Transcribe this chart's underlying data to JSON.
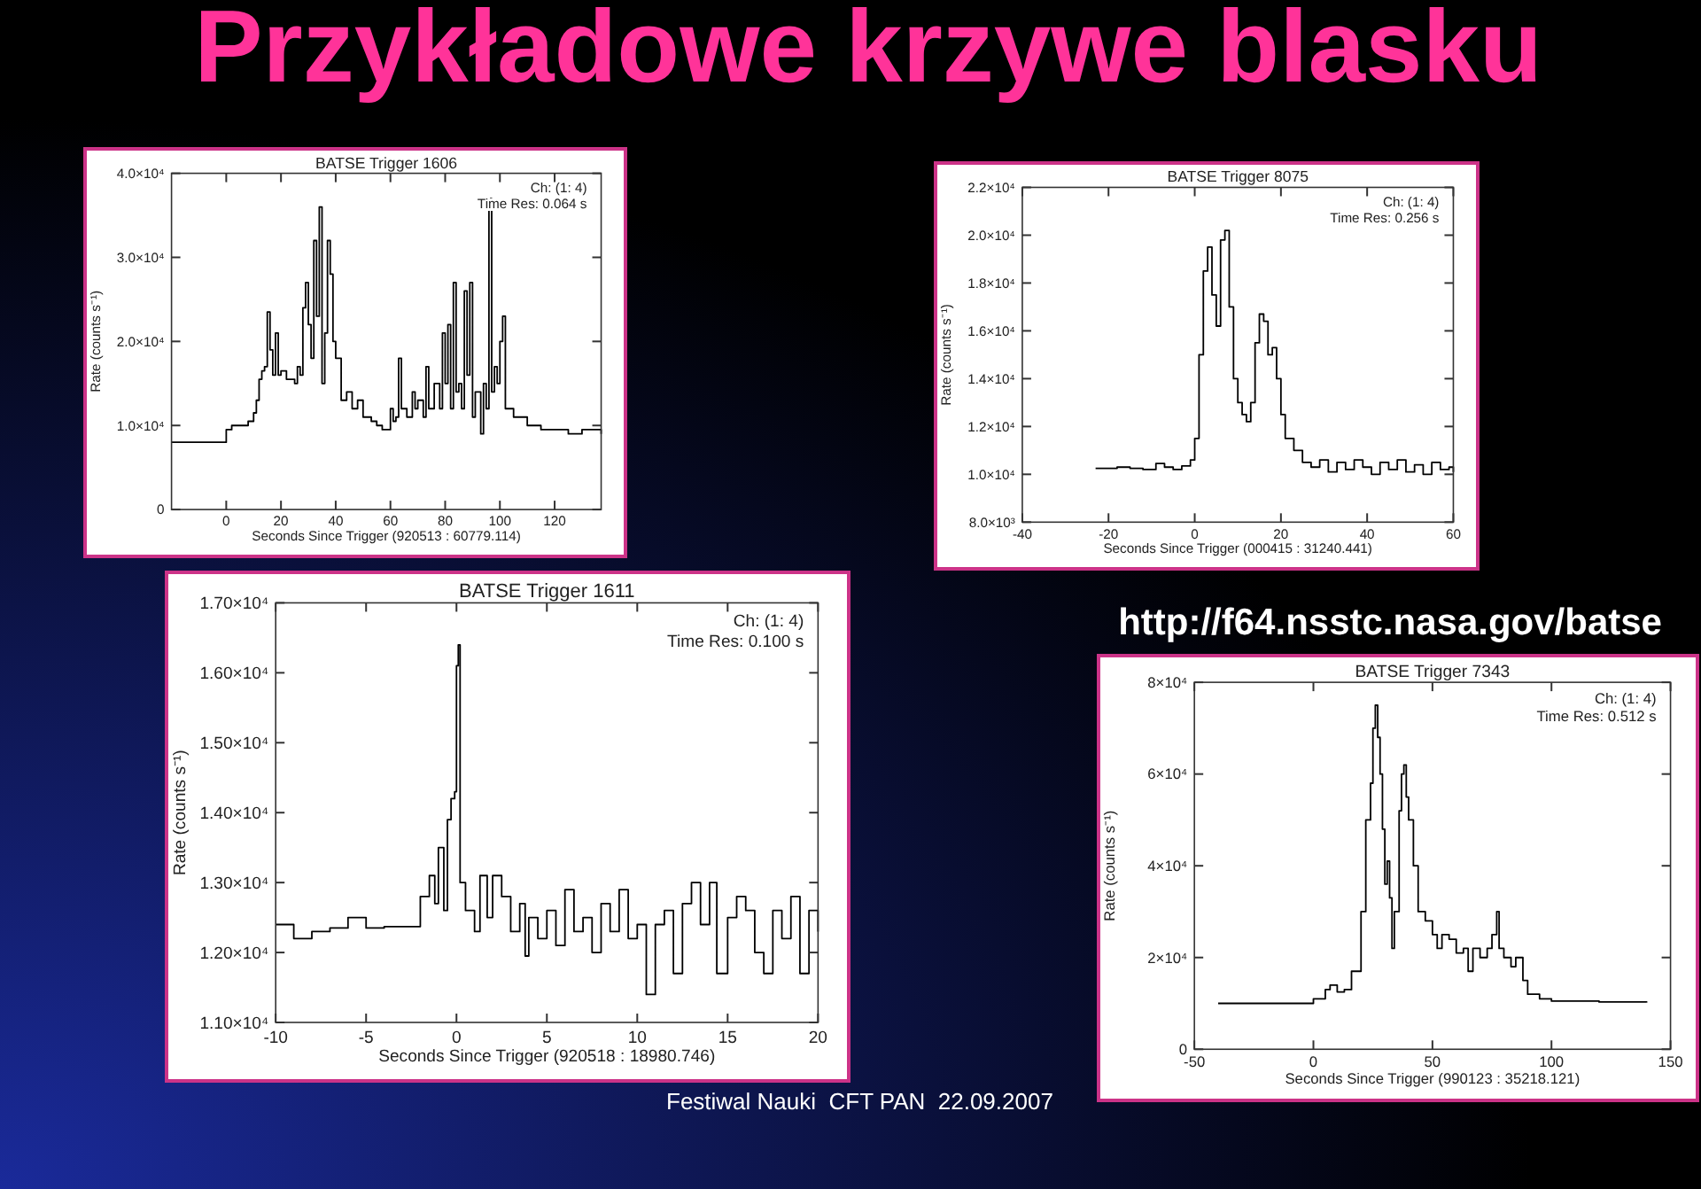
{
  "chart_data": [
    {
      "type": "other",
      "title": "Przykładowe krzywe blasku",
      "annotations": [
        "http://f64.nsstc.nasa.gov/batse",
        "Festiwal Nauki  CFT PAN  22.09.2007"
      ]
    },
    {
      "type": "step",
      "title": "BATSE Trigger 1606",
      "xlabel": "Seconds Since Trigger (920513 : 60779.114)",
      "ylabel": "Rate (counts s⁻¹)",
      "annotations": [
        "Ch: (1: 4)",
        "Time Res: 0.064 s"
      ],
      "xlim": [
        -20,
        137
      ],
      "xticks": [
        0,
        20,
        40,
        60,
        80,
        100,
        120
      ],
      "ylim": [
        0,
        40000
      ],
      "yticks": [
        {
          "value": 0,
          "label": "0"
        },
        {
          "value": 10000,
          "label": "1.0×10⁴"
        },
        {
          "value": 20000,
          "label": "2.0×10⁴"
        },
        {
          "value": 30000,
          "label": "3.0×10⁴"
        },
        {
          "value": 40000,
          "label": "4.0×10⁴"
        }
      ],
      "grid": false,
      "series": [
        {
          "color": "#000000",
          "x": [
            -20,
            -2,
            0,
            2,
            5,
            8,
            10,
            11,
            12,
            13,
            14,
            15,
            16,
            17,
            18,
            19,
            20,
            22,
            25,
            26,
            27,
            28,
            29,
            30,
            31,
            32,
            33,
            34,
            35,
            36,
            37,
            38,
            39,
            40,
            42,
            44,
            46,
            48,
            50,
            53,
            55,
            57,
            60,
            61,
            62,
            63,
            64,
            66,
            68,
            69,
            70,
            72,
            73,
            74,
            76,
            78,
            79,
            80,
            81,
            82,
            83,
            84,
            85,
            86,
            87,
            88,
            89,
            90,
            91,
            93,
            94,
            95,
            96,
            97,
            98,
            99,
            100,
            101,
            102,
            105,
            110,
            115,
            120,
            125,
            130,
            137
          ],
          "values": [
            8000,
            8000,
            9500,
            10000,
            10000,
            10500,
            11500,
            13000,
            15500,
            16500,
            17000,
            23500,
            19000,
            16000,
            21000,
            16000,
            16500,
            15500,
            15000,
            17000,
            16000,
            24000,
            27000,
            22000,
            18000,
            32000,
            23000,
            36000,
            15000,
            21000,
            32000,
            28000,
            20000,
            18000,
            13000,
            14000,
            12000,
            13000,
            11000,
            10500,
            10000,
            9500,
            12000,
            10500,
            11000,
            18000,
            12000,
            11000,
            14000,
            12000,
            13000,
            11000,
            17000,
            12000,
            15000,
            12000,
            21000,
            15000,
            22000,
            12000,
            27000,
            14000,
            15000,
            12000,
            26000,
            16000,
            27000,
            11000,
            14000,
            9000,
            15000,
            12000,
            37000,
            14000,
            17000,
            15000,
            20000,
            23000,
            12000,
            11000,
            10000,
            9500,
            9500,
            9000,
            9500,
            9000
          ]
        }
      ]
    },
    {
      "type": "step",
      "title": "BATSE Trigger 8075",
      "xlabel": "Seconds Since Trigger (000415 : 31240.441)",
      "ylabel": "Rate (counts s⁻¹)",
      "annotations": [
        "Ch: (1: 4)",
        "Time Res: 0.256 s"
      ],
      "xlim": [
        -40,
        60
      ],
      "xticks": [
        -40,
        -20,
        0,
        20,
        40,
        60
      ],
      "ylim": [
        8000,
        22000
      ],
      "yticks": [
        {
          "value": 8000,
          "label": "8.0×10³"
        },
        {
          "value": 10000,
          "label": "1.0×10⁴"
        },
        {
          "value": 12000,
          "label": "1.2×10⁴"
        },
        {
          "value": 14000,
          "label": "1.4×10⁴"
        },
        {
          "value": 16000,
          "label": "1.6×10⁴"
        },
        {
          "value": 18000,
          "label": "1.8×10⁴"
        },
        {
          "value": 20000,
          "label": "2.0×10⁴"
        },
        {
          "value": 22000,
          "label": "2.2×10⁴"
        }
      ],
      "grid": false,
      "series": [
        {
          "color": "#000000",
          "x": [
            -23,
            -18,
            -15,
            -12,
            -9,
            -7,
            -5,
            -3,
            -1,
            0,
            1,
            2,
            3,
            4,
            5,
            6,
            7,
            8,
            9,
            10,
            11,
            12,
            13,
            14,
            15,
            16,
            17,
            18,
            19,
            20,
            21,
            23,
            25,
            27,
            29,
            31,
            33,
            35,
            37,
            39,
            41,
            43,
            45,
            47,
            49,
            51,
            53,
            55,
            57,
            59,
            60
          ],
          "values": [
            10250,
            10300,
            10250,
            10200,
            10450,
            10300,
            10200,
            10350,
            10600,
            11500,
            15000,
            18500,
            19500,
            17500,
            16200,
            19800,
            20200,
            17000,
            14000,
            13000,
            12500,
            12200,
            13000,
            15500,
            16700,
            16400,
            15000,
            15300,
            14000,
            12500,
            11500,
            11000,
            10500,
            10300,
            10600,
            10100,
            10500,
            10200,
            10600,
            10300,
            10000,
            10500,
            10200,
            10600,
            10100,
            10400,
            10000,
            10500,
            10200,
            10300,
            10100
          ]
        }
      ]
    },
    {
      "type": "step",
      "title": "BATSE Trigger 1611",
      "xlabel": "Seconds Since Trigger (920518 : 18980.746)",
      "ylabel": "Rate (counts s⁻¹)",
      "annotations": [
        "Ch: (1: 4)",
        "Time Res: 0.100 s"
      ],
      "xlim": [
        -10,
        20
      ],
      "xticks": [
        -10,
        -5,
        0,
        5,
        10,
        15,
        20
      ],
      "ylim": [
        11000,
        17000
      ],
      "yticks": [
        {
          "value": 11000,
          "label": "1.10×10⁴"
        },
        {
          "value": 12000,
          "label": "1.20×10⁴"
        },
        {
          "value": 13000,
          "label": "1.30×10⁴"
        },
        {
          "value": 14000,
          "label": "1.40×10⁴"
        },
        {
          "value": 15000,
          "label": "1.50×10⁴"
        },
        {
          "value": 16000,
          "label": "1.60×10⁴"
        },
        {
          "value": 17000,
          "label": "1.70×10⁴"
        }
      ],
      "grid": false,
      "series": [
        {
          "color": "#000000",
          "x": [
            -10,
            -9,
            -8,
            -7,
            -6,
            -5,
            -4,
            -2,
            -1.5,
            -1.2,
            -1,
            -0.7,
            -0.5,
            -0.3,
            -0.1,
            0,
            0.1,
            0.2,
            0.5,
            1,
            1.3,
            1.7,
            2,
            2.5,
            3,
            3.5,
            3.8,
            4,
            4.5,
            5,
            5.5,
            6,
            6.5,
            7,
            7.5,
            8,
            8.5,
            9,
            9.5,
            10,
            10.5,
            11,
            11.5,
            12,
            12.5,
            13,
            13.5,
            14,
            14.4,
            15,
            15.5,
            16,
            16.5,
            17,
            17.5,
            18,
            18.5,
            19,
            19.5,
            20
          ],
          "values": [
            12400,
            12200,
            12300,
            12350,
            12500,
            12350,
            12370,
            12800,
            13100,
            12700,
            13500,
            12600,
            13900,
            14200,
            14300,
            16100,
            16400,
            13000,
            12600,
            12300,
            13100,
            12500,
            13100,
            12800,
            12300,
            12700,
            11950,
            12500,
            12200,
            12600,
            12100,
            12900,
            12300,
            12500,
            12000,
            12700,
            12300,
            12900,
            12200,
            12400,
            11400,
            12400,
            12600,
            11700,
            12700,
            13000,
            12400,
            13000,
            11700,
            12500,
            12800,
            12600,
            12000,
            11700,
            12600,
            12200,
            12800,
            11700,
            12600,
            12300
          ]
        }
      ]
    },
    {
      "type": "step",
      "title": "BATSE Trigger 7343",
      "xlabel": "Seconds Since Trigger (990123 : 35218.121)",
      "ylabel": "Rate (counts s⁻¹)",
      "annotations": [
        "Ch: (1: 4)",
        "Time Res: 0.512 s"
      ],
      "xlim": [
        -50,
        150
      ],
      "xticks": [
        -50,
        0,
        50,
        100,
        150
      ],
      "ylim": [
        0,
        80000
      ],
      "yticks": [
        {
          "value": 0,
          "label": "0"
        },
        {
          "value": 20000,
          "label": "2×10⁴"
        },
        {
          "value": 40000,
          "label": "4×10⁴"
        },
        {
          "value": 60000,
          "label": "6×10⁴"
        },
        {
          "value": 80000,
          "label": "8×10⁴"
        }
      ],
      "grid": false,
      "series": [
        {
          "color": "#000000",
          "x": [
            -40,
            -20,
            -2,
            0,
            5,
            7,
            10,
            13,
            16,
            20,
            22,
            24,
            25,
            26,
            27,
            28,
            29,
            30,
            31,
            32,
            33,
            34,
            36,
            37,
            38,
            39,
            40,
            42,
            44,
            47,
            50,
            52,
            54,
            57,
            60,
            63,
            65,
            67,
            70,
            73,
            75,
            77,
            78,
            80,
            83,
            85,
            88,
            90,
            95,
            100,
            120,
            140
          ],
          "values": [
            10000,
            10000,
            10000,
            11000,
            13000,
            14000,
            12500,
            13000,
            17000,
            30000,
            50000,
            58000,
            70000,
            75000,
            68000,
            60000,
            48000,
            36000,
            41000,
            33000,
            22000,
            30000,
            52000,
            60000,
            62000,
            55000,
            50000,
            40000,
            30000,
            28000,
            25000,
            22000,
            25000,
            24000,
            21000,
            22000,
            17000,
            22000,
            20000,
            22000,
            25000,
            30000,
            22000,
            20000,
            18000,
            20000,
            15000,
            12000,
            11000,
            10500,
            10300,
            10200
          ]
        }
      ]
    }
  ]
}
